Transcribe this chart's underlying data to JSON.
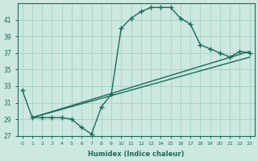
{
  "title": "",
  "xlabel": "Humidex (Indice chaleur)",
  "ylabel": "",
  "bg_color": "#cce8e0",
  "line_color": "#1a6b5a",
  "grid_color": "#aad4c8",
  "xlim": [
    -0.5,
    23.5
  ],
  "ylim": [
    27,
    43
  ],
  "yticks": [
    27,
    29,
    31,
    33,
    35,
    37,
    39,
    41
  ],
  "xticks": [
    0,
    1,
    2,
    3,
    4,
    5,
    6,
    7,
    8,
    9,
    10,
    11,
    12,
    13,
    14,
    15,
    16,
    17,
    18,
    19,
    20,
    21,
    22,
    23
  ],
  "line1_x": [
    0,
    1,
    2,
    3,
    4,
    5,
    6,
    7,
    8,
    9,
    10,
    11,
    12,
    13,
    14,
    15,
    16,
    17,
    18,
    19,
    20,
    21,
    22,
    23
  ],
  "line1_y": [
    32.5,
    29.2,
    29.2,
    29.2,
    29.2,
    29.0,
    28.0,
    27.2,
    30.5,
    32.0,
    40.0,
    41.2,
    42.0,
    42.5,
    42.5,
    42.5,
    41.2,
    40.5,
    38.0,
    37.5,
    37.0,
    36.5,
    37.2,
    37.0
  ],
  "line2_x": [
    1,
    23
  ],
  "line2_y": [
    29.2,
    37.2
  ],
  "line3_x": [
    1,
    23
  ],
  "line3_y": [
    29.2,
    36.5
  ]
}
